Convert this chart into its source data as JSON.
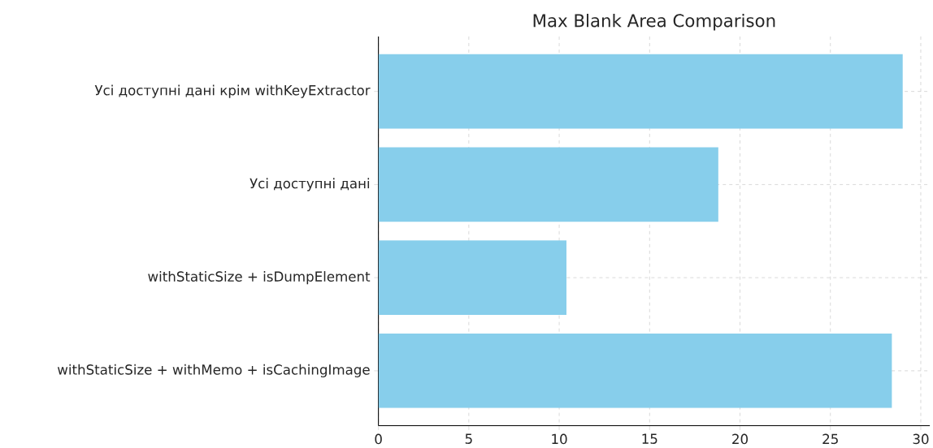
{
  "chart_data": {
    "type": "bar",
    "orientation": "horizontal",
    "title": "Max Blank Area Comparison",
    "categories": [
      "Усі доступні дані крім withKeyExtractor",
      "Усі доступні дані",
      "withStaticSize + isDumpElement",
      "withStaticSize + withMemo + isCachingImage"
    ],
    "values": [
      29.0,
      18.8,
      10.4,
      28.4
    ],
    "color": "#87ceeb",
    "xlim": [
      0,
      30.5
    ],
    "xticks": [
      0,
      5,
      10,
      15,
      20,
      25,
      30
    ],
    "grid": true
  }
}
